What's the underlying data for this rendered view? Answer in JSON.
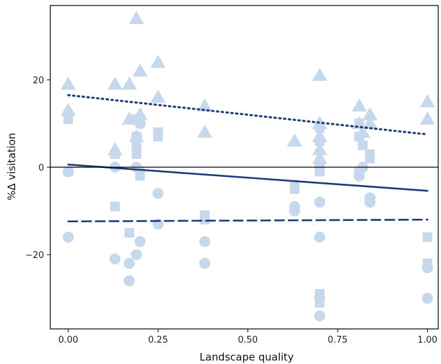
{
  "chart_data": {
    "type": "scatter",
    "title": "",
    "xlabel": "Landscape quality",
    "ylabel": "%Δ visitation",
    "xlim": [
      -0.05,
      1.03
    ],
    "ylim": [
      -37,
      37
    ],
    "x_ticks": [
      0.0,
      0.25,
      0.5,
      0.75,
      1.0
    ],
    "x_tick_labels": [
      "0.00",
      "0.25",
      "0.50",
      "0.75",
      "1.00"
    ],
    "y_ticks": [
      -20,
      0,
      20
    ],
    "y_tick_labels": [
      "−20",
      "0",
      "20"
    ],
    "grid": false,
    "legend": "none",
    "colors": {
      "marker": "#c6d9ec",
      "line": "#1f3a7a",
      "zero_line": "#000000",
      "frame": "#000000"
    },
    "reference_line": {
      "y": 0
    },
    "series": [
      {
        "marker": "triangle",
        "points": [
          [
            0.0,
            19
          ],
          [
            0.0,
            13
          ],
          [
            0.13,
            19
          ],
          [
            0.13,
            4
          ],
          [
            0.17,
            19
          ],
          [
            0.17,
            11
          ],
          [
            0.19,
            34
          ],
          [
            0.2,
            22
          ],
          [
            0.2,
            12
          ],
          [
            0.19,
            7
          ],
          [
            0.25,
            24
          ],
          [
            0.25,
            16
          ],
          [
            0.38,
            14
          ],
          [
            0.38,
            8
          ],
          [
            0.63,
            6
          ],
          [
            0.63,
            6
          ],
          [
            0.7,
            21
          ],
          [
            0.7,
            10
          ],
          [
            0.7,
            7
          ],
          [
            0.7,
            4
          ],
          [
            0.7,
            2
          ],
          [
            0.81,
            14
          ],
          [
            0.81,
            10
          ],
          [
            0.82,
            8
          ],
          [
            0.84,
            12
          ],
          [
            0.84,
            10
          ],
          [
            1.0,
            15
          ],
          [
            1.0,
            11
          ]
        ]
      },
      {
        "marker": "square",
        "points": [
          [
            0.0,
            11
          ],
          [
            0.0,
            -1
          ],
          [
            0.13,
            3
          ],
          [
            0.13,
            -9
          ],
          [
            0.17,
            -15
          ],
          [
            0.19,
            11
          ],
          [
            0.19,
            7
          ],
          [
            0.19,
            5
          ],
          [
            0.19,
            3
          ],
          [
            0.2,
            -1
          ],
          [
            0.2,
            -2
          ],
          [
            0.25,
            8
          ],
          [
            0.25,
            7
          ],
          [
            0.38,
            -11
          ],
          [
            0.38,
            -12
          ],
          [
            0.63,
            -4
          ],
          [
            0.63,
            -5
          ],
          [
            0.7,
            9
          ],
          [
            0.7,
            6
          ],
          [
            0.7,
            0
          ],
          [
            0.7,
            -1
          ],
          [
            0.7,
            -29
          ],
          [
            0.7,
            -31
          ],
          [
            0.81,
            10
          ],
          [
            0.81,
            7
          ],
          [
            0.82,
            5
          ],
          [
            0.84,
            3
          ],
          [
            0.84,
            2
          ],
          [
            1.0,
            -16
          ],
          [
            1.0,
            -22
          ]
        ]
      },
      {
        "marker": "circle",
        "points": [
          [
            0.0,
            -1
          ],
          [
            0.0,
            -16
          ],
          [
            0.13,
            0
          ],
          [
            0.13,
            -21
          ],
          [
            0.17,
            -22
          ],
          [
            0.17,
            -26
          ],
          [
            0.19,
            7
          ],
          [
            0.19,
            -20
          ],
          [
            0.2,
            10
          ],
          [
            0.2,
            -17
          ],
          [
            0.19,
            0
          ],
          [
            0.25,
            -6
          ],
          [
            0.25,
            -13
          ],
          [
            0.38,
            -17
          ],
          [
            0.38,
            -22
          ],
          [
            0.63,
            -9
          ],
          [
            0.63,
            -10
          ],
          [
            0.7,
            0
          ],
          [
            0.7,
            -8
          ],
          [
            0.7,
            -16
          ],
          [
            0.7,
            -30
          ],
          [
            0.7,
            -34
          ],
          [
            0.81,
            -1
          ],
          [
            0.81,
            -2
          ],
          [
            0.82,
            0
          ],
          [
            0.84,
            -7
          ],
          [
            0.84,
            -8
          ],
          [
            1.0,
            -23
          ],
          [
            1.0,
            -30
          ]
        ]
      }
    ],
    "fit_lines": [
      {
        "style": "dotted",
        "x": [
          0.0,
          1.0
        ],
        "y": [
          16.5,
          7.5
        ]
      },
      {
        "style": "solid",
        "x": [
          0.0,
          1.0
        ],
        "y": [
          0.6,
          -5.4
        ]
      },
      {
        "style": "dashed",
        "x": [
          0.0,
          1.0
        ],
        "y": [
          -12.4,
          -12.0
        ]
      }
    ]
  }
}
